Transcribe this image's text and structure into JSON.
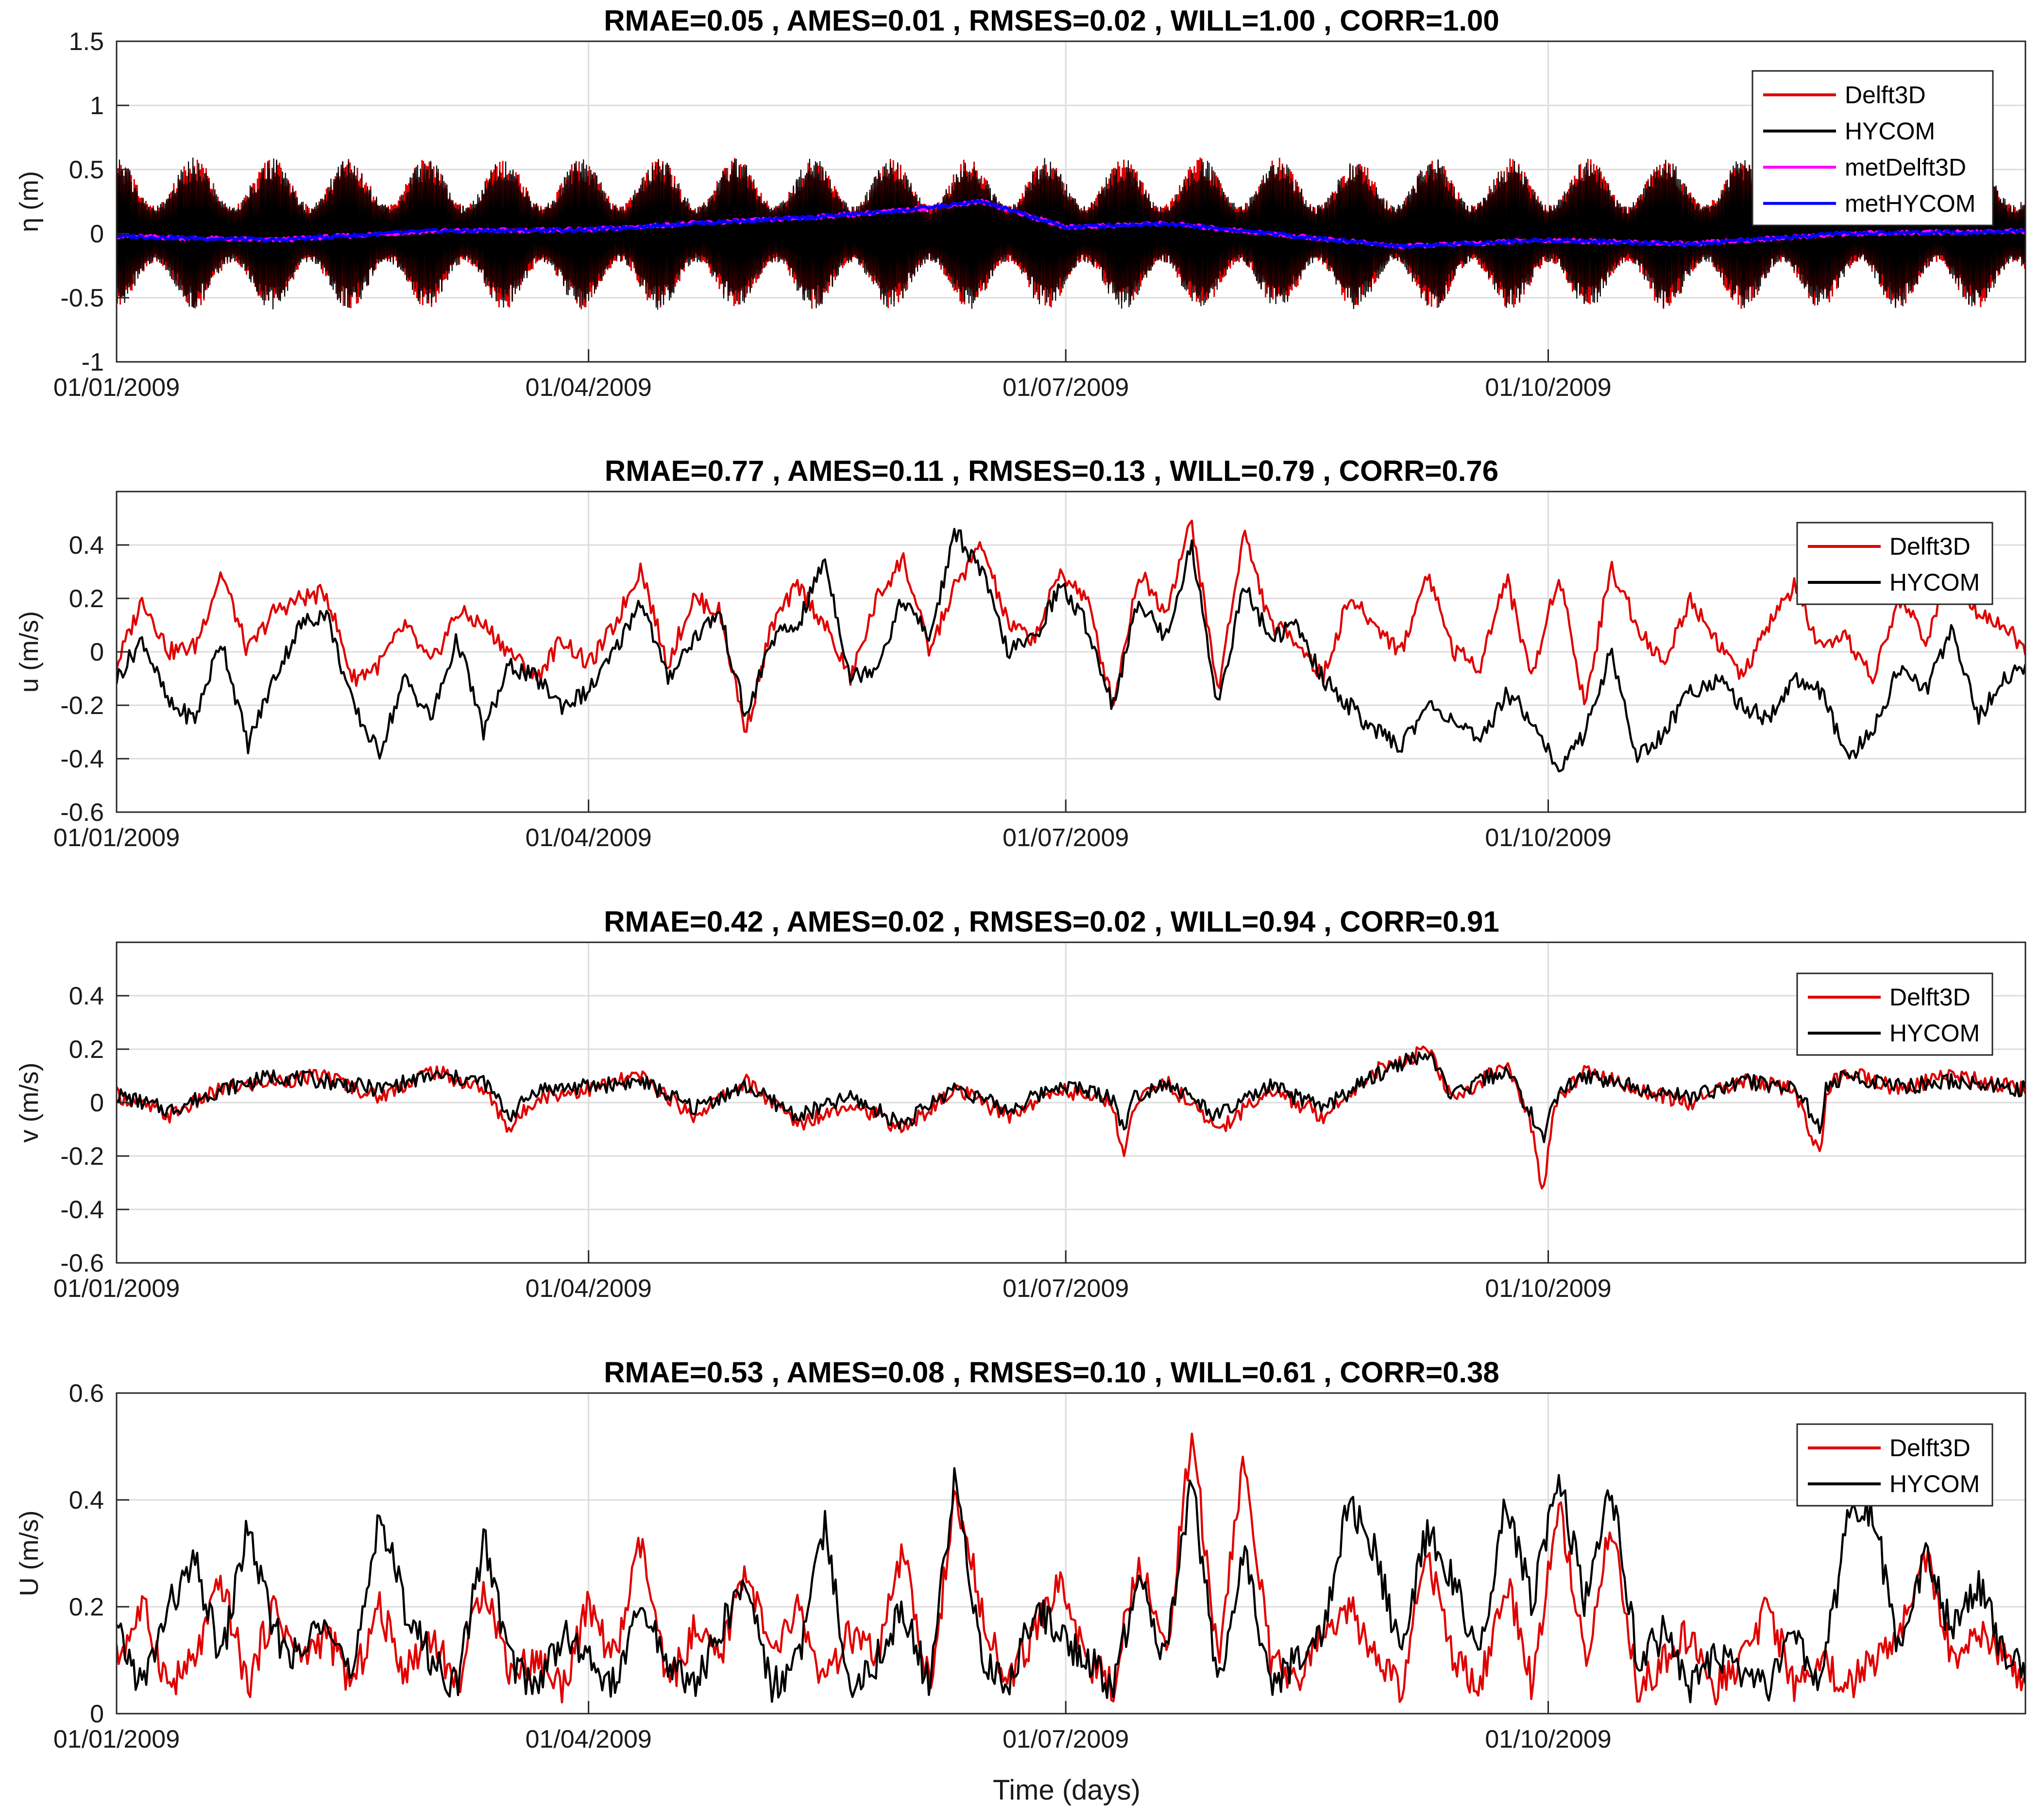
{
  "xlabel": "Time (days)",
  "chart_data": [
    {
      "type": "line",
      "title": "RMAE=0.05 ,  AMES=0.01 ,  RMSES=0.02 ,  WILL=1.00 ,  CORR=1.00",
      "ylabel": "η (m)",
      "ylim": [
        -1,
        1.5
      ],
      "yticks": [
        -1,
        -0.5,
        0,
        0.5,
        1,
        1.5
      ],
      "xlim": [
        0,
        364
      ],
      "xticks": [
        0,
        90,
        181,
        273
      ],
      "xticklabels": [
        "01/01/2009",
        "01/04/2009",
        "01/07/2009",
        "01/10/2009"
      ],
      "series": [
        {
          "name": "Delft3D",
          "color": "#e00000",
          "amplitude_envelope": [
            0.45,
            0.65
          ],
          "mean": 0.0
        },
        {
          "name": "HYCOM",
          "color": "#000000",
          "amplitude_envelope": [
            0.45,
            0.7
          ],
          "mean": 0.0
        },
        {
          "name": "metDelft3D",
          "color": "#ff00ff",
          "x": [
            0,
            30,
            60,
            90,
            110,
            130,
            150,
            165,
            181,
            200,
            220,
            245,
            273,
            300,
            330,
            364
          ],
          "values": [
            -0.02,
            -0.05,
            0.02,
            0.03,
            0.08,
            0.12,
            0.18,
            0.25,
            0.05,
            0.08,
            0.0,
            -0.1,
            -0.05,
            -0.08,
            0.0,
            0.02
          ]
        },
        {
          "name": "metHYCOM",
          "color": "#0000ff",
          "x": [
            0,
            30,
            60,
            90,
            110,
            130,
            150,
            165,
            181,
            200,
            220,
            245,
            273,
            300,
            330,
            364
          ],
          "values": [
            -0.02,
            -0.05,
            0.02,
            0.03,
            0.08,
            0.12,
            0.18,
            0.25,
            0.05,
            0.08,
            0.0,
            -0.1,
            -0.05,
            -0.08,
            0.0,
            0.02
          ]
        }
      ],
      "legend": [
        "Delft3D",
        "HYCOM",
        "metDelft3D",
        "metHYCOM"
      ],
      "grid": true
    },
    {
      "type": "line",
      "title": "RMAE=0.77 ,  AMES=0.11 ,  RMSES=0.13 ,  WILL=0.79 ,  CORR=0.76",
      "ylabel": "u (m/s)",
      "ylim": [
        -0.6,
        0.6
      ],
      "yticks": [
        -0.6,
        -0.4,
        -0.2,
        0,
        0.2,
        0.4
      ],
      "xlim": [
        0,
        364
      ],
      "xticks": [
        0,
        90,
        181,
        273
      ],
      "xticklabels": [
        "01/01/2009",
        "01/04/2009",
        "01/07/2009",
        "01/10/2009"
      ],
      "series": [
        {
          "name": "Delft3D",
          "color": "#e00000",
          "x": [
            0,
            5,
            10,
            15,
            20,
            25,
            30,
            35,
            40,
            45,
            50,
            55,
            60,
            65,
            70,
            75,
            80,
            85,
            90,
            95,
            100,
            105,
            110,
            115,
            120,
            125,
            130,
            135,
            140,
            145,
            150,
            155,
            160,
            165,
            170,
            175,
            180,
            185,
            190,
            195,
            200,
            205,
            210,
            215,
            220,
            225,
            230,
            235,
            240,
            245,
            250,
            255,
            260,
            265,
            270,
            275,
            280,
            285,
            290,
            295,
            300,
            305,
            310,
            315,
            320,
            325,
            330,
            335,
            340,
            345,
            350,
            355,
            360,
            364
          ],
          "values": [
            -0.05,
            0.2,
            0.0,
            0.02,
            0.3,
            0.0,
            0.15,
            0.2,
            0.22,
            -0.1,
            -0.05,
            0.1,
            -0.05,
            0.15,
            0.1,
            0.0,
            -0.1,
            0.05,
            -0.05,
            0.1,
            0.32,
            -0.05,
            0.2,
            0.15,
            -0.3,
            0.1,
            0.25,
            0.1,
            -0.1,
            0.2,
            0.35,
            0.0,
            0.25,
            0.4,
            0.1,
            0.05,
            0.3,
            0.2,
            -0.2,
            0.3,
            0.15,
            0.49,
            -0.15,
            0.45,
            0.1,
            0.05,
            -0.1,
            0.2,
            0.1,
            0.0,
            0.3,
            0.0,
            -0.05,
            0.28,
            -0.1,
            0.3,
            -0.2,
            0.32,
            0.1,
            -0.05,
            0.2,
            0.05,
            -0.1,
            0.1,
            0.25,
            0.0,
            0.05,
            -0.1,
            0.2,
            0.05,
            0.3,
            0.15,
            0.1,
            0.0
          ]
        },
        {
          "name": "HYCOM",
          "color": "#000000",
          "x": [
            0,
            5,
            10,
            15,
            20,
            25,
            30,
            35,
            40,
            45,
            50,
            55,
            60,
            65,
            70,
            75,
            80,
            85,
            90,
            95,
            100,
            105,
            110,
            115,
            120,
            125,
            130,
            135,
            140,
            145,
            150,
            155,
            160,
            165,
            170,
            175,
            180,
            185,
            190,
            195,
            200,
            205,
            210,
            215,
            220,
            225,
            230,
            235,
            240,
            245,
            250,
            255,
            260,
            265,
            270,
            275,
            280,
            285,
            290,
            295,
            300,
            305,
            310,
            315,
            320,
            325,
            330,
            335,
            340,
            345,
            350,
            355,
            360,
            364
          ],
          "values": [
            -0.1,
            0.05,
            -0.2,
            -0.25,
            0.05,
            -0.35,
            -0.1,
            0.1,
            0.15,
            -0.2,
            -0.38,
            -0.1,
            -0.25,
            0.05,
            -0.3,
            -0.05,
            -0.1,
            -0.2,
            -0.15,
            0.0,
            0.2,
            -0.1,
            0.05,
            0.15,
            -0.25,
            0.05,
            0.1,
            0.35,
            -0.1,
            -0.05,
            0.2,
            0.05,
            0.45,
            0.3,
            0.0,
            0.05,
            0.25,
            0.1,
            -0.2,
            0.2,
            0.05,
            0.4,
            -0.2,
            0.25,
            0.05,
            0.1,
            -0.1,
            -0.2,
            -0.3,
            -0.35,
            -0.2,
            -0.25,
            -0.35,
            -0.15,
            -0.25,
            -0.45,
            -0.3,
            0.0,
            -0.4,
            -0.3,
            -0.15,
            -0.1,
            -0.2,
            -0.25,
            -0.1,
            -0.15,
            -0.4,
            -0.3,
            -0.05,
            -0.15,
            0.1,
            -0.25,
            -0.1,
            -0.05
          ]
        }
      ],
      "legend": [
        "Delft3D",
        "HYCOM"
      ],
      "grid": true
    },
    {
      "type": "line",
      "title": "RMAE=0.42 ,  AMES=0.02 ,  RMSES=0.02 ,  WILL=0.94 ,  CORR=0.91",
      "ylabel": "v (m/s)",
      "ylim": [
        -0.6,
        0.6
      ],
      "yticks": [
        -0.6,
        -0.4,
        -0.2,
        0,
        0.2,
        0.4
      ],
      "xlim": [
        0,
        364
      ],
      "xticks": [
        0,
        90,
        181,
        273
      ],
      "xticklabels": [
        "01/01/2009",
        "01/04/2009",
        "01/07/2009",
        "01/10/2009"
      ],
      "series": [
        {
          "name": "Delft3D",
          "color": "#e00000",
          "x": [
            0,
            10,
            20,
            30,
            40,
            50,
            60,
            70,
            75,
            80,
            90,
            100,
            110,
            120,
            130,
            140,
            150,
            160,
            170,
            180,
            190,
            192,
            194,
            200,
            210,
            220,
            230,
            240,
            245,
            250,
            255,
            260,
            265,
            270,
            272,
            274,
            280,
            290,
            300,
            310,
            320,
            325,
            326,
            330,
            340,
            350,
            364
          ],
          "values": [
            0.03,
            -0.05,
            0.05,
            0.08,
            0.1,
            0.02,
            0.12,
            0.05,
            -0.1,
            0.02,
            0.05,
            0.1,
            -0.05,
            0.08,
            -0.08,
            0.0,
            -0.1,
            0.05,
            -0.05,
            0.05,
            0.0,
            -0.22,
            0.0,
            0.08,
            -0.1,
            0.05,
            -0.05,
            0.12,
            0.15,
            0.2,
            0.0,
            0.08,
            0.15,
            -0.1,
            -0.36,
            0.0,
            0.12,
            0.05,
            0.0,
            0.08,
            0.05,
            -0.22,
            0.05,
            0.12,
            0.05,
            0.1,
            0.05
          ]
        },
        {
          "name": "HYCOM",
          "color": "#000000",
          "x": [
            0,
            10,
            20,
            30,
            40,
            50,
            60,
            70,
            75,
            80,
            90,
            100,
            110,
            120,
            130,
            140,
            150,
            160,
            170,
            180,
            190,
            192,
            194,
            200,
            210,
            220,
            230,
            240,
            245,
            250,
            255,
            260,
            265,
            270,
            272,
            274,
            280,
            290,
            300,
            310,
            320,
            325,
            326,
            330,
            340,
            350,
            364
          ],
          "values": [
            0.03,
            -0.03,
            0.05,
            0.1,
            0.08,
            0.05,
            0.1,
            0.08,
            -0.05,
            0.05,
            0.06,
            0.08,
            -0.02,
            0.06,
            -0.05,
            0.02,
            -0.08,
            0.06,
            -0.03,
            0.07,
            0.02,
            -0.1,
            0.02,
            0.08,
            -0.05,
            0.06,
            -0.02,
            0.1,
            0.15,
            0.18,
            0.02,
            0.08,
            0.12,
            -0.05,
            -0.15,
            0.02,
            0.1,
            0.06,
            0.02,
            0.08,
            0.06,
            -0.1,
            0.05,
            0.1,
            0.06,
            0.08,
            0.05
          ]
        }
      ],
      "legend": [
        "Delft3D",
        "HYCOM"
      ],
      "grid": true
    },
    {
      "type": "line",
      "title": "RMAE=0.53 ,  AMES=0.08 ,  RMSES=0.10 ,  WILL=0.61 ,  CORR=0.38",
      "ylabel": "U (m/s)",
      "ylim": [
        0,
        0.6
      ],
      "yticks": [
        0,
        0.2,
        0.4,
        0.6
      ],
      "xlim": [
        0,
        364
      ],
      "xticks": [
        0,
        90,
        181,
        273
      ],
      "xticklabels": [
        "01/01/2009",
        "01/04/2009",
        "01/07/2009",
        "01/10/2009"
      ],
      "series": [
        {
          "name": "Delft3D",
          "color": "#e00000",
          "x": [
            0,
            5,
            10,
            15,
            20,
            25,
            30,
            35,
            40,
            45,
            50,
            55,
            60,
            65,
            70,
            75,
            80,
            85,
            90,
            95,
            100,
            105,
            110,
            115,
            120,
            125,
            130,
            135,
            140,
            145,
            150,
            155,
            160,
            165,
            170,
            175,
            180,
            185,
            190,
            195,
            200,
            205,
            210,
            215,
            220,
            225,
            230,
            235,
            240,
            245,
            250,
            255,
            260,
            265,
            270,
            275,
            280,
            285,
            290,
            295,
            300,
            305,
            310,
            315,
            320,
            325,
            330,
            335,
            340,
            345,
            350,
            355,
            360,
            364
          ],
          "values": [
            0.1,
            0.2,
            0.05,
            0.1,
            0.25,
            0.05,
            0.2,
            0.1,
            0.15,
            0.05,
            0.2,
            0.08,
            0.15,
            0.05,
            0.25,
            0.08,
            0.1,
            0.05,
            0.2,
            0.1,
            0.32,
            0.05,
            0.15,
            0.1,
            0.28,
            0.1,
            0.2,
            0.05,
            0.15,
            0.1,
            0.3,
            0.05,
            0.4,
            0.2,
            0.05,
            0.15,
            0.25,
            0.1,
            0.05,
            0.3,
            0.1,
            0.53,
            0.1,
            0.48,
            0.1,
            0.05,
            0.15,
            0.2,
            0.1,
            0.05,
            0.3,
            0.1,
            0.05,
            0.25,
            0.05,
            0.4,
            0.1,
            0.35,
            0.05,
            0.1,
            0.15,
            0.05,
            0.1,
            0.2,
            0.05,
            0.1,
            0.05,
            0.1,
            0.15,
            0.3,
            0.1,
            0.15,
            0.1,
            0.05
          ]
        },
        {
          "name": "HYCOM",
          "color": "#000000",
          "x": [
            0,
            5,
            10,
            15,
            20,
            25,
            30,
            35,
            40,
            45,
            50,
            55,
            60,
            65,
            70,
            75,
            80,
            85,
            90,
            95,
            100,
            105,
            110,
            115,
            120,
            125,
            130,
            135,
            140,
            145,
            150,
            155,
            160,
            165,
            170,
            175,
            180,
            185,
            190,
            195,
            200,
            205,
            210,
            215,
            220,
            225,
            230,
            235,
            240,
            245,
            250,
            255,
            260,
            265,
            270,
            275,
            280,
            285,
            290,
            295,
            300,
            305,
            310,
            315,
            320,
            325,
            330,
            335,
            340,
            345,
            350,
            355,
            360,
            364
          ],
          "values": [
            0.15,
            0.05,
            0.2,
            0.28,
            0.1,
            0.35,
            0.15,
            0.1,
            0.2,
            0.05,
            0.38,
            0.2,
            0.1,
            0.05,
            0.33,
            0.1,
            0.05,
            0.15,
            0.1,
            0.05,
            0.2,
            0.1,
            0.05,
            0.15,
            0.25,
            0.05,
            0.1,
            0.35,
            0.05,
            0.1,
            0.2,
            0.05,
            0.45,
            0.1,
            0.05,
            0.2,
            0.15,
            0.1,
            0.05,
            0.25,
            0.1,
            0.45,
            0.05,
            0.3,
            0.05,
            0.1,
            0.15,
            0.4,
            0.3,
            0.1,
            0.35,
            0.25,
            0.1,
            0.4,
            0.2,
            0.45,
            0.2,
            0.42,
            0.1,
            0.15,
            0.05,
            0.1,
            0.08,
            0.05,
            0.15,
            0.05,
            0.35,
            0.38,
            0.1,
            0.3,
            0.15,
            0.25,
            0.1,
            0.08
          ]
        }
      ],
      "legend": [
        "Delft3D",
        "HYCOM"
      ],
      "grid": true
    }
  ]
}
